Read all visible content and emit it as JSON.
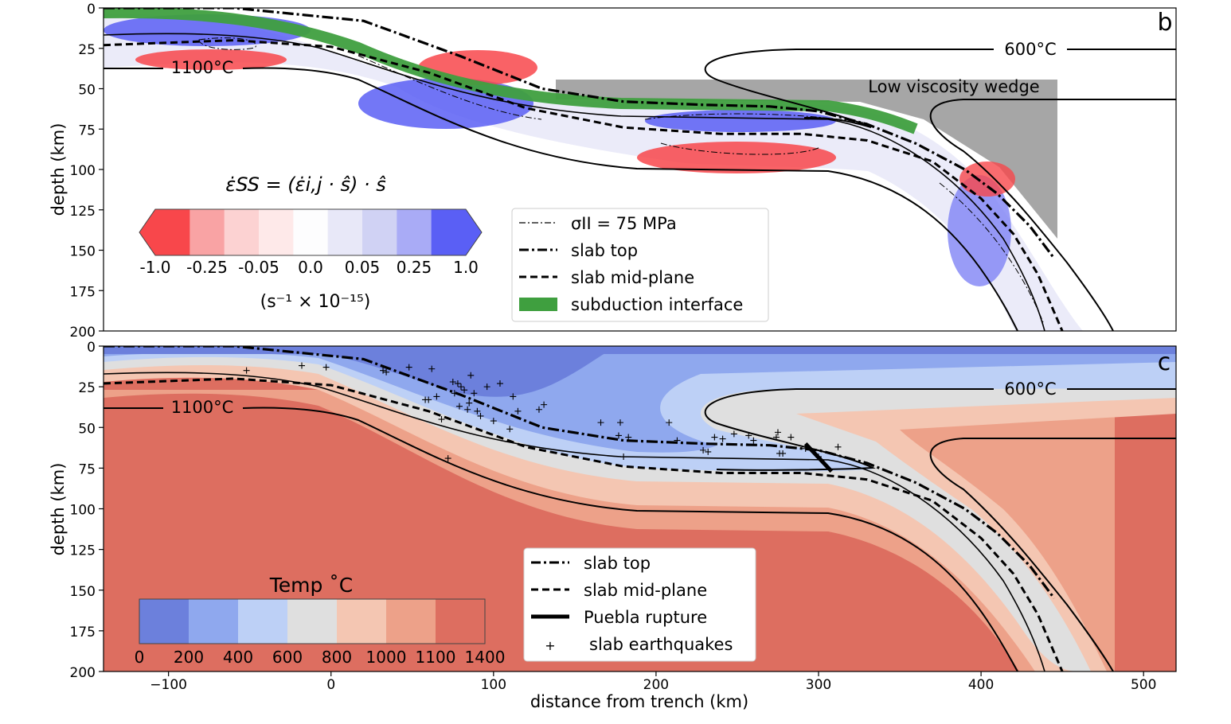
{
  "chart_data": [
    {
      "panel": "b",
      "type": "heatmap",
      "ylabel": "depth (km)",
      "ylim": [
        200,
        0
      ],
      "yticks": [
        0,
        25,
        50,
        75,
        100,
        125,
        150,
        175,
        200
      ],
      "xlim": [
        -140,
        520
      ],
      "annotations": [
        "600°C",
        "1100°C",
        "Low viscosity wedge"
      ],
      "colorbar": {
        "title": "ε̇SS = (ε̇i,j · ŝ) · ŝ",
        "ticks": [
          "-1.0",
          "-0.25",
          "-0.05",
          "0.0",
          "0.05",
          "0.25",
          "1.0"
        ],
        "units": "(s⁻¹ × 10⁻¹⁵)",
        "colors": [
          "#f8474b",
          "#f9a3a4",
          "#fcd2d2",
          "#fee9e9",
          "#fdfdfe",
          "#e8e8f8",
          "#d0d2f4",
          "#a9abf6",
          "#5a5ff5"
        ]
      },
      "legend": {
        "placement": "center-right",
        "entries": [
          {
            "label": "σII = 75 MPa",
            "style": "thin-dashdot"
          },
          {
            "label": "slab top",
            "style": "thick-dashdot"
          },
          {
            "label": "slab mid-plane",
            "style": "dashed"
          },
          {
            "label": "subduction interface",
            "style": "green-patch"
          }
        ]
      },
      "series": [
        {
          "name": "slab top",
          "x": [
            -140,
            -60,
            20,
            80,
            130,
            180,
            230,
            270,
            300,
            330,
            360,
            390,
            410,
            430,
            445
          ],
          "y": [
            0,
            0,
            8,
            30,
            50,
            58,
            60,
            61,
            64,
            72,
            84,
            100,
            115,
            135,
            155
          ]
        },
        {
          "name": "slab mid-plane",
          "x": [
            -140,
            -60,
            0,
            60,
            120,
            180,
            240,
            290,
            330,
            370,
            400,
            420,
            435,
            450
          ],
          "y": [
            23,
            20,
            24,
            40,
            62,
            74,
            78,
            78,
            82,
            95,
            118,
            140,
            165,
            200
          ]
        }
      ]
    },
    {
      "panel": "c",
      "type": "heatmap",
      "xlabel": "distance from trench (km)",
      "ylabel": "depth (km)",
      "xlim": [
        -140,
        520
      ],
      "ylim": [
        200,
        0
      ],
      "xticks": [
        -100,
        0,
        100,
        200,
        300,
        400,
        500
      ],
      "xticklabels": [
        "−100",
        "0",
        "100",
        "200",
        "300",
        "400",
        "500"
      ],
      "yticks": [
        0,
        25,
        50,
        75,
        100,
        125,
        150,
        175,
        200
      ],
      "annotations": [
        "600°C",
        "1100°C"
      ],
      "colorbar": {
        "title": "Temp ˚C",
        "ticks": [
          "0",
          "200",
          "400",
          "600",
          "800",
          "1000",
          "1100",
          "1400"
        ],
        "colors": [
          "#6c80dc",
          "#8fa8ee",
          "#bdd0f6",
          "#dfdfdf",
          "#f4c6b2",
          "#eda189",
          "#dd6e60"
        ]
      },
      "legend": {
        "placement": "lower-center",
        "entries": [
          {
            "label": "slab top",
            "style": "thick-dashdot"
          },
          {
            "label": "slab mid-plane",
            "style": "dashed"
          },
          {
            "label": "Puebla rupture",
            "style": "thick-solid"
          },
          {
            "label": "slab earthquakes",
            "style": "plus-marker"
          }
        ]
      },
      "rupture": {
        "x": [
          292,
          308
        ],
        "y": [
          60,
          77
        ]
      },
      "earthquakes": {
        "x": [
          -52,
          -18,
          -3,
          32,
          34,
          48,
          58,
          60,
          62,
          65,
          68,
          72,
          75,
          76,
          78,
          79,
          80,
          82,
          84,
          85,
          86,
          88,
          90,
          92,
          96,
          100,
          104,
          110,
          112,
          115,
          128,
          131,
          166,
          177,
          178,
          180,
          183,
          208,
          213,
          229,
          232,
          236,
          241,
          248,
          257,
          260,
          274,
          275,
          276,
          278,
          283,
          292,
          300,
          312
        ],
        "y": [
          15,
          12,
          13,
          15,
          16,
          13,
          33,
          33,
          14,
          31,
          45,
          69,
          22,
          29,
          23,
          37,
          25,
          27,
          39,
          35,
          18,
          29,
          40,
          43,
          25,
          46,
          23,
          51,
          31,
          40,
          39,
          36,
          47,
          55,
          47,
          68,
          56,
          47,
          58,
          64,
          65,
          56,
          57,
          54,
          55,
          58,
          56,
          53,
          66,
          66,
          56,
          63,
          68,
          62
        ]
      }
    }
  ]
}
